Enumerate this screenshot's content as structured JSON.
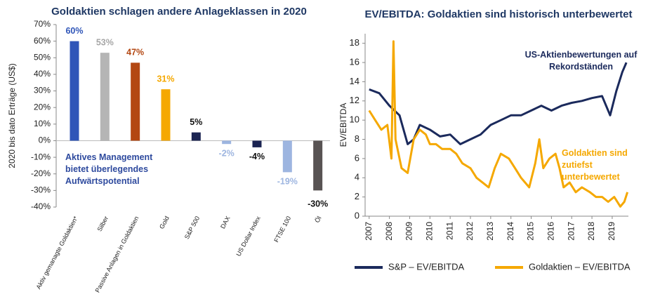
{
  "chart_data": [
    {
      "type": "bar",
      "title": "Goldaktien schlagen andere Anlageklassen in 2020",
      "y_label": "2020 bis dato Erträge (US$)",
      "annotation": {
        "text": "Aktives Management bietet überlegendes Aufwärtspotential",
        "color": "#2e4a9e"
      },
      "categories": [
        "Aktiv gemanagte Goldaktien*",
        "Silber",
        "Passive Anlagen in Goldaktien",
        "Gold",
        "S&P 500",
        "DAX",
        "US Dollar Index",
        "FTSE 100",
        "Öl"
      ],
      "values": [
        60,
        53,
        47,
        31,
        5,
        -2,
        -4,
        -19,
        -30
      ],
      "value_labels": [
        "60%",
        "53%",
        "47%",
        "31%",
        "5%",
        "-2%",
        "-4%",
        "-19%",
        "-30%"
      ],
      "colors": [
        "#2f55b8",
        "#b5b5b5",
        "#b34712",
        "#f5a800",
        "#1b2452",
        "#9db5e0",
        "#1b2452",
        "#9db5e0",
        "#585353"
      ],
      "label_colors": [
        "#2f55b8",
        "#a6a6a6",
        "#b34712",
        "#f5a800",
        "#111111",
        "#9db5e0",
        "#111111",
        "#9db5e0",
        "#111111"
      ],
      "ylim": [
        -40,
        70
      ],
      "yticks": [
        {
          "value": -40,
          "label": "-40%"
        },
        {
          "value": -30,
          "label": "-30%"
        },
        {
          "value": -20,
          "label": "-20%"
        },
        {
          "value": -10,
          "label": "-10%"
        },
        {
          "value": 0,
          "label": "0%"
        },
        {
          "value": 10,
          "label": "10%"
        },
        {
          "value": 20,
          "label": "20%"
        },
        {
          "value": 30,
          "label": "30%"
        },
        {
          "value": 40,
          "label": "40%"
        },
        {
          "value": 50,
          "label": "50%"
        },
        {
          "value": 60,
          "label": "60%"
        },
        {
          "value": 70,
          "label": "70%"
        }
      ],
      "grid": false
    },
    {
      "type": "line",
      "title": "EV/EBITDA: Goldaktien sind historisch unterbewertet",
      "y_label": "EV/EBITDA",
      "annotations": [
        {
          "text": "US-Aktienbewertungen auf Rekordständen",
          "color": "#1b2a5c"
        },
        {
          "text": "Goldaktien sind zutiefst unterbewertet",
          "color": "#f5a800"
        }
      ],
      "series": [
        {
          "name": "S&P – EV/EBITDA",
          "color": "#1b2a5c",
          "x": [
            2007,
            2007.5,
            2008,
            2008.5,
            2008.9,
            2009.2,
            2009.5,
            2010,
            2010.5,
            2011,
            2011.5,
            2012,
            2012.5,
            2013,
            2013.5,
            2014,
            2014.5,
            2015,
            2015.5,
            2016,
            2016.5,
            2017,
            2017.5,
            2018,
            2018.5,
            2018.9,
            2019.2,
            2019.5,
            2019.7
          ],
          "values": [
            13.2,
            12.8,
            11.5,
            10.5,
            7.5,
            8,
            9.5,
            9,
            8.3,
            8.5,
            7.5,
            8,
            8.5,
            9.5,
            10,
            10.5,
            10.5,
            11,
            11.5,
            11,
            11.5,
            11.8,
            12,
            12.3,
            12.5,
            10.5,
            13,
            15,
            16
          ]
        },
        {
          "name": "Goldaktien – EV/EBITDA",
          "color": "#f5a800",
          "x": [
            2007,
            2007.3,
            2007.6,
            2007.9,
            2008.1,
            2008.2,
            2008.3,
            2008.6,
            2008.9,
            2009.2,
            2009.5,
            2009.8,
            2010,
            2010.3,
            2010.6,
            2011,
            2011.3,
            2011.6,
            2012,
            2012.3,
            2012.6,
            2012.9,
            2013.2,
            2013.5,
            2013.9,
            2014.2,
            2014.5,
            2014.9,
            2015.2,
            2015.4,
            2015.6,
            2015.9,
            2016.2,
            2016.4,
            2016.6,
            2016.9,
            2017.2,
            2017.5,
            2017.9,
            2018.2,
            2018.5,
            2018.8,
            2019.1,
            2019.4,
            2019.6,
            2019.75
          ],
          "values": [
            11,
            10,
            9,
            9.5,
            6,
            18.2,
            8,
            5,
            4.5,
            8,
            9,
            8.5,
            7.5,
            7.5,
            7,
            7,
            6.5,
            5.5,
            5,
            4,
            3.5,
            3,
            5,
            6.5,
            6,
            5,
            4,
            3,
            5.5,
            8,
            5,
            6,
            6.5,
            5,
            3,
            3.5,
            2.5,
            3,
            2.5,
            2,
            2,
            1.5,
            2,
            1,
            1.5,
            2.5
          ]
        }
      ],
      "xlim": [
        2006.8,
        2019.8
      ],
      "xticks": [
        2007,
        2008,
        2009,
        2010,
        2011,
        2012,
        2013,
        2014,
        2015,
        2016,
        2017,
        2018,
        2019
      ],
      "ylim": [
        0,
        19
      ],
      "yticks": [
        0,
        2,
        4,
        6,
        8,
        10,
        12,
        14,
        16,
        18
      ],
      "grid": false
    }
  ]
}
